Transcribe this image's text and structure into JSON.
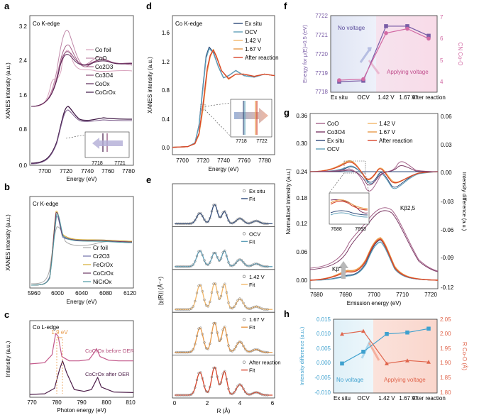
{
  "colors": {
    "co_foil": "#d9a3bd",
    "coo": "#b97a9d",
    "co2o3": "#9c587f",
    "co3o4": "#7d3c67",
    "coox": "#4e1f4a",
    "cocrox": "#3f1745",
    "cr_foil": "#a8a8a8",
    "cr2o3": "#6f6fa8",
    "fecrox": "#d6ad33",
    "cocrox_cr": "#6c3a63",
    "nicrox": "#4d9aa3",
    "exsitu": "#2e4a7a",
    "ocv": "#5f9fb8",
    "v142": "#f2b769",
    "v167": "#e89a4a",
    "after": "#d8442a",
    "purple": "#7a5da6",
    "pink": "#d26aa4",
    "blue": "#3fa1cf",
    "red": "#e0654c",
    "axis": "#333333",
    "gray": "#888888"
  },
  "panels": {
    "a": {
      "letter": "a",
      "title": "Co K-edge",
      "xlabel": "Energy (eV)",
      "ylabel": "XANES intensity (a.u.)",
      "xticks": [
        "7700",
        "7720",
        "7740",
        "7760",
        "7780"
      ],
      "yticks": [
        "0.0",
        "0.8",
        "1.6",
        "2.4",
        "3.2"
      ],
      "legend": [
        "Co foil",
        "CoO",
        "Co2O3",
        "Co3O4",
        "CoOx",
        "CoCrOx"
      ],
      "inset_ticks": [
        "7718",
        "7721"
      ]
    },
    "b": {
      "letter": "b",
      "title": "Cr K-edge",
      "xlabel": "Energy (eV)",
      "ylabel": "XANES intensity (a.u.)",
      "xticks": [
        "5960",
        "6000",
        "6040",
        "6080",
        "6120"
      ],
      "legend": [
        "Cr foil",
        "Cr2O3",
        "FeCrOx",
        "CoCrOx",
        "NiCrOx"
      ]
    },
    "c": {
      "letter": "c",
      "title": "Co L-edge",
      "xlabel": "Photon energy (eV)",
      "ylabel": "Intensity (a.u.)",
      "xticks": [
        "770",
        "780",
        "790",
        "800",
        "810"
      ],
      "shift_label": "1.9 eV",
      "label_before": "CoCrOx before OER",
      "label_after": "CoCrOx after OER"
    },
    "d": {
      "letter": "d",
      "title": "Co K-edge",
      "xlabel": "Energy (eV)",
      "ylabel": "XANES intensity (a.u.)",
      "xticks": [
        "7700",
        "7720",
        "7740",
        "7760",
        "7780"
      ],
      "yticks": [
        "0.0",
        "0.4",
        "0.8",
        "1.2",
        "1.6"
      ],
      "legend": [
        "Ex situ",
        "OCV",
        "1.42 V",
        "1.67 V",
        "After reaction"
      ],
      "inset_ticks": [
        "7718",
        "7722"
      ]
    },
    "e": {
      "letter": "e",
      "xlabel": "R (Å)",
      "ylabel": "|χ(R)| (Å⁻⁴)",
      "xticks": [
        "0",
        "2",
        "4",
        "6"
      ],
      "fit_label": "Fit",
      "conditions": [
        "Ex situ",
        "OCV",
        "1.42 V",
        "1.67 V",
        "After reaction"
      ]
    },
    "f": {
      "letter": "f",
      "ylabel_left": "Energy for μ(E)=0.5 (eV)",
      "ylabel_right": "CN Co-O",
      "yticks_left": [
        "7718",
        "7719",
        "7720",
        "7721",
        "7722"
      ],
      "yticks_right": [
        "4",
        "5",
        "6",
        "7"
      ],
      "xlabels": [
        "Ex situ",
        "OCV",
        "1.42 V",
        "1.67 V",
        "After reaction"
      ],
      "no_voltage": "No voltage",
      "applying_voltage": "Applying voltage"
    },
    "g": {
      "letter": "g",
      "xlabel": "Emission energy (eV)",
      "ylabel_left": "Normalized intensity (a.u.)",
      "ylabel_right": "Intensity difference (a.u.)",
      "xticks": [
        "7680",
        "7690",
        "7700",
        "7710",
        "7720"
      ],
      "yticks_left": [
        "0.00",
        "0.06",
        "0.12",
        "0.18",
        "0.24",
        "0.30",
        "0.36"
      ],
      "yticks_right": [
        "-0.12",
        "-0.09",
        "-0.06",
        "-0.03",
        "0.00",
        "0.03",
        "0.06"
      ],
      "legend": [
        "CoO",
        "Co3O4",
        "Ex situ",
        "OCV",
        "1.42 V",
        "1.67 V",
        "After reaction"
      ],
      "kb25": "Kβ2,5",
      "kbpp": "Kβ''",
      "inset_ticks": [
        "7688",
        "7693"
      ]
    },
    "h": {
      "letter": "h",
      "ylabel_left": "Intensity difference (a.u.)",
      "ylabel_right": "R Co-O (Å)",
      "yticks_left": [
        "-0.010",
        "-0.005",
        "0.000",
        "0.005",
        "0.010",
        "0.015"
      ],
      "yticks_right": [
        "1.80",
        "1.85",
        "1.90",
        "1.95",
        "2.00",
        "2.05"
      ],
      "xlabels": [
        "Ex situ",
        "OCV",
        "1.42 V",
        "1.67 V",
        "After reaction"
      ],
      "no_voltage": "No voltage",
      "applying_voltage": "Applying voltage"
    }
  },
  "chart_data": [
    {
      "panel": "f",
      "type": "line",
      "title": "",
      "categories": [
        "Ex situ",
        "OCV",
        "1.42 V",
        "1.67 V",
        "After reaction"
      ],
      "series": [
        {
          "name": "Energy for μ(E)=0.5 (eV)",
          "axis": "left",
          "values": [
            7718.55,
            7718.6,
            7721.45,
            7721.45,
            7720.95
          ]
        },
        {
          "name": "CN Co-O",
          "axis": "right",
          "values": [
            4.05,
            4.1,
            6.2,
            6.4,
            5.95
          ]
        }
      ],
      "ylim_left": [
        7718,
        7722
      ],
      "ylim_right": [
        3.5,
        7
      ]
    },
    {
      "panel": "h",
      "type": "line",
      "title": "",
      "categories": [
        "Ex situ",
        "OCV",
        "1.42 V",
        "1.67 V",
        "After reaction"
      ],
      "series": [
        {
          "name": "Intensity difference (a.u.)",
          "axis": "left",
          "values": [
            0.0,
            0.004,
            0.01,
            0.0105,
            0.0118
          ]
        },
        {
          "name": "R Co-O (Å)",
          "axis": "right",
          "values": [
            2.0,
            2.01,
            1.9,
            1.91,
            1.905
          ]
        }
      ],
      "ylim_left": [
        -0.01,
        0.015
      ],
      "ylim_right": [
        1.8,
        2.05
      ]
    },
    {
      "panel": "c",
      "type": "line",
      "title": "Co L-edge",
      "xlabel": "Photon energy (eV)",
      "ylabel": "Intensity (a.u.)",
      "xlim": [
        770,
        812
      ],
      "shift_eV": 1.9,
      "series": [
        {
          "name": "CoCrOx before OER",
          "x": [
            770,
            776,
            779,
            780.5,
            781.5,
            783,
            786,
            790,
            794,
            796,
            797,
            798.5,
            802,
            806,
            812
          ],
          "y": [
            0.5,
            0.52,
            0.65,
            1.0,
            0.95,
            0.62,
            0.55,
            0.55,
            0.57,
            0.68,
            0.75,
            0.62,
            0.56,
            0.55,
            0.55
          ]
        },
        {
          "name": "CoCrOx after OER",
          "x": [
            770,
            776,
            780,
            782,
            783.3,
            785,
            788,
            792,
            795,
            796.5,
            797.5,
            799,
            804,
            812
          ],
          "y": [
            0.0,
            0.01,
            0.1,
            0.4,
            0.55,
            0.35,
            0.08,
            0.05,
            0.08,
            0.2,
            0.28,
            0.12,
            0.04,
            0.03
          ]
        }
      ]
    },
    {
      "panel": "d",
      "type": "line",
      "title": "Co K-edge",
      "xlabel": "Energy (eV)",
      "ylabel": "XANES intensity (a.u.)",
      "xlim": [
        7690,
        7790
      ],
      "ylim": [
        -0.1,
        1.8
      ],
      "series": [
        {
          "name": "Ex situ",
          "x": [
            7690,
            7705,
            7712,
            7716,
            7720,
            7723,
            7726,
            7730,
            7735,
            7740,
            7745,
            7752,
            7760,
            7770,
            7780,
            7790
          ],
          "y": [
            0,
            0.01,
            0.06,
            0.3,
            0.85,
            1.25,
            1.37,
            1.3,
            1.1,
            0.95,
            0.98,
            1.05,
            0.98,
            0.96,
            1.0,
            0.98
          ]
        },
        {
          "name": "OCV",
          "x": [
            7690,
            7705,
            7712,
            7716,
            7720,
            7723,
            7726,
            7730,
            7735,
            7740,
            7745,
            7752,
            7760,
            7770,
            7780,
            7790
          ],
          "y": [
            0,
            0.01,
            0.06,
            0.29,
            0.82,
            1.22,
            1.35,
            1.29,
            1.1,
            0.95,
            0.98,
            1.05,
            0.98,
            0.96,
            1.0,
            0.98
          ]
        },
        {
          "name": "1.42 V",
          "x": [
            7690,
            7705,
            7712,
            7716,
            7720,
            7724,
            7727,
            7730,
            7733,
            7738,
            7745,
            7752,
            7760,
            7770,
            7780,
            7790
          ],
          "y": [
            0,
            0.01,
            0.05,
            0.18,
            0.55,
            1.05,
            1.25,
            1.34,
            1.25,
            1.05,
            0.93,
            1.0,
            1.0,
            0.97,
            1.0,
            0.98
          ]
        },
        {
          "name": "1.67 V",
          "x": [
            7690,
            7705,
            7712,
            7716,
            7720,
            7724,
            7727,
            7730,
            7733,
            7738,
            7745,
            7752,
            7760,
            7770,
            7780,
            7790
          ],
          "y": [
            0,
            0.01,
            0.05,
            0.17,
            0.53,
            1.03,
            1.24,
            1.33,
            1.25,
            1.05,
            0.93,
            1.0,
            1.0,
            0.97,
            1.0,
            0.98
          ]
        },
        {
          "name": "After reaction",
          "x": [
            7690,
            7705,
            7712,
            7716,
            7720,
            7724,
            7727,
            7730,
            7733,
            7738,
            7745,
            7752,
            7760,
            7770,
            7780,
            7790
          ],
          "y": [
            0,
            0.01,
            0.05,
            0.19,
            0.6,
            1.08,
            1.26,
            1.33,
            1.24,
            1.05,
            0.94,
            1.0,
            1.0,
            0.97,
            1.0,
            0.98
          ]
        }
      ]
    }
  ]
}
